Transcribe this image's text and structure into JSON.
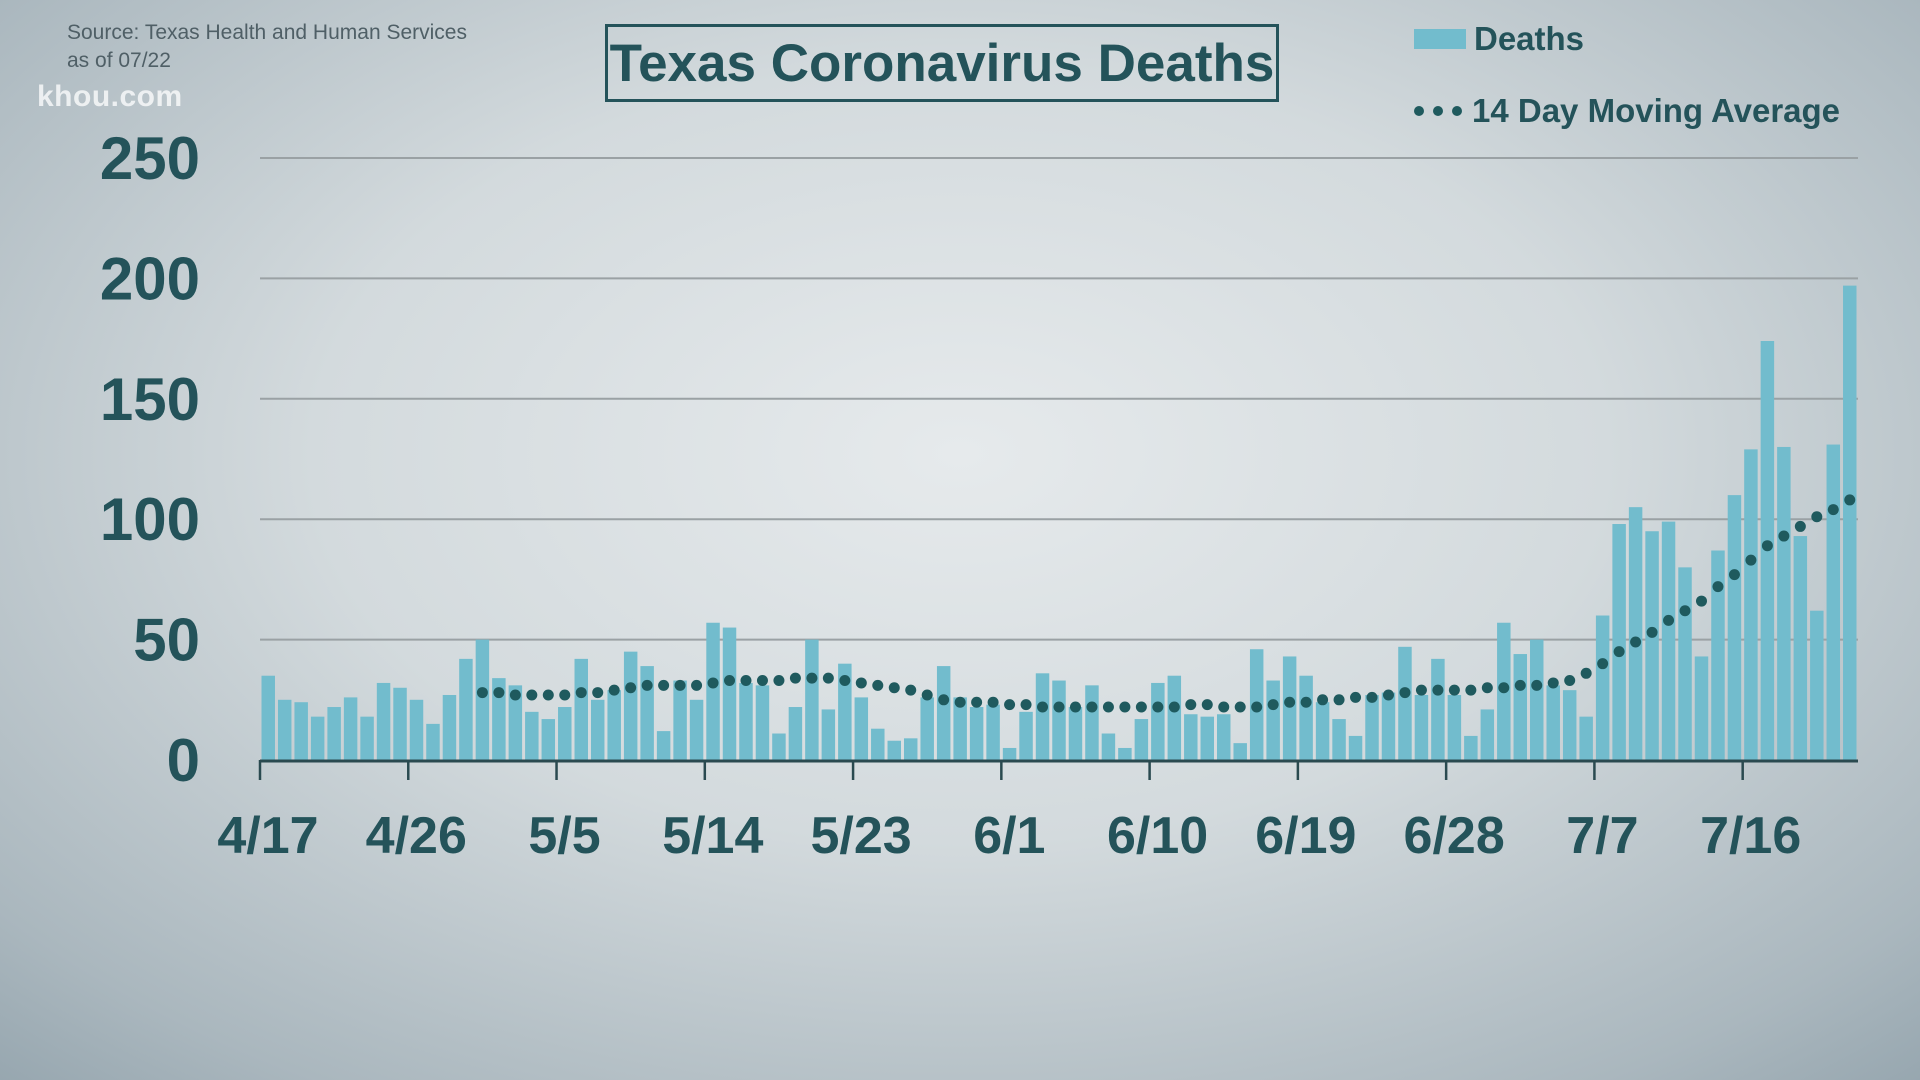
{
  "source": "Source: Texas Health and Human Services",
  "as_of": "as of 07/22",
  "logo": "khou.com",
  "colors": {
    "bar": "#72bccd",
    "average": "#1f5a5e",
    "text": "#24535a",
    "grid": "#9aa1a4"
  },
  "chart_data": {
    "type": "bar",
    "title": "Texas Coronavirus Deaths",
    "xlabel": "",
    "ylabel": "",
    "ylim": [
      0,
      250
    ],
    "yticks": [
      "0",
      "50",
      "100",
      "150",
      "200",
      "250"
    ],
    "xtick_labels": [
      "4/17",
      "4/26",
      "5/5",
      "5/14",
      "5/23",
      "6/1",
      "6/10",
      "6/19",
      "6/28",
      "7/7",
      "7/16"
    ],
    "xtick_day_index": [
      0,
      9,
      18,
      27,
      36,
      45,
      54,
      63,
      72,
      81,
      90
    ],
    "grid": true,
    "legend_position": "top-right",
    "series": [
      {
        "name": "Deaths",
        "type": "bar",
        "start_date": "4/17",
        "values": [
          35,
          25,
          24,
          18,
          22,
          26,
          18,
          32,
          30,
          25,
          15,
          27,
          42,
          50,
          34,
          31,
          20,
          17,
          22,
          42,
          25,
          29,
          45,
          39,
          12,
          33,
          25,
          57,
          55,
          32,
          31,
          11,
          22,
          50,
          21,
          40,
          26,
          13,
          8,
          9,
          26,
          39,
          26,
          22,
          23,
          5,
          20,
          36,
          33,
          22,
          31,
          11,
          5,
          17,
          32,
          35,
          19,
          18,
          19,
          7,
          46,
          33,
          43,
          35,
          24,
          17,
          10,
          27,
          28,
          47,
          27,
          42,
          27,
          10,
          21,
          57,
          44,
          50,
          31,
          29,
          18,
          60,
          98,
          105,
          95,
          99,
          80,
          43,
          87,
          110,
          129,
          174,
          130,
          93,
          62,
          131,
          197
        ]
      },
      {
        "name": "14 Day Moving Average",
        "type": "dotted-line",
        "start_day_index": 13,
        "values": [
          28,
          28,
          27,
          27,
          27,
          27,
          28,
          28,
          29,
          30,
          31,
          31,
          31,
          31,
          32,
          33,
          33,
          33,
          33,
          34,
          34,
          34,
          33,
          32,
          31,
          30,
          29,
          27,
          25,
          24,
          24,
          24,
          23,
          23,
          22,
          22,
          22,
          22,
          22,
          22,
          22,
          22,
          22,
          23,
          23,
          22,
          22,
          22,
          23,
          24,
          24,
          25,
          25,
          26,
          26,
          27,
          28,
          29,
          29,
          29,
          29,
          30,
          30,
          31,
          31,
          32,
          33,
          36,
          40,
          45,
          49,
          53,
          58,
          62,
          66,
          72,
          77,
          83,
          89,
          93,
          97,
          101,
          104,
          108
        ]
      }
    ]
  }
}
